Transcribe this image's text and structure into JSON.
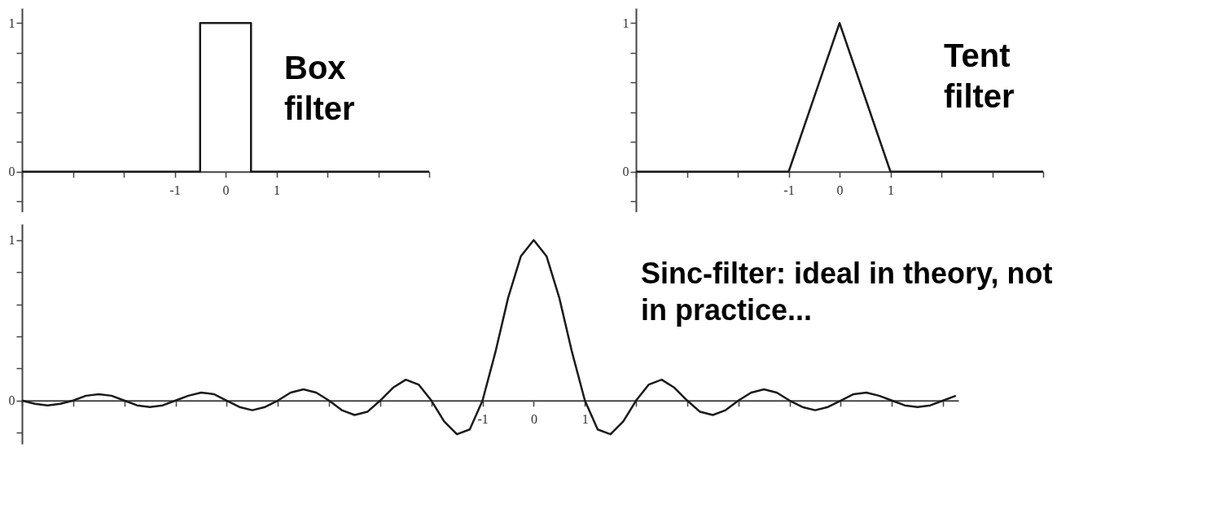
{
  "chart_data": [
    {
      "type": "step",
      "annotations": [
        "Box filter"
      ],
      "series": [
        {
          "color": "#1a1a1a",
          "x": [
            -4,
            -0.5,
            0.5,
            4
          ],
          "values": [
            0,
            1,
            0,
            0
          ]
        }
      ],
      "xlim": [
        -4,
        4
      ],
      "xticks": [
        {
          "value": -4,
          "label": null
        },
        {
          "value": -3,
          "label": null
        },
        {
          "value": -2,
          "label": null
        },
        -1,
        0,
        1,
        {
          "value": 2,
          "label": null
        },
        {
          "value": 3,
          "label": null
        },
        {
          "value": 4,
          "label": null
        }
      ],
      "ylim": [
        -0.27,
        1.1
      ],
      "yticks": [
        {
          "value": -0.2,
          "label": null
        },
        0,
        {
          "value": 0.2,
          "label": null
        },
        {
          "value": 0.4,
          "label": null
        },
        {
          "value": 0.6,
          "label": null
        },
        {
          "value": 0.8,
          "label": null
        },
        1
      ]
    },
    {
      "type": "line",
      "annotations": [
        "Tent filter"
      ],
      "series": [
        {
          "color": "#1a1a1a",
          "x": [
            -4,
            -1,
            0,
            1,
            4
          ],
          "values": [
            0,
            0,
            1,
            0,
            0
          ]
        }
      ],
      "xlim": [
        -4,
        4
      ],
      "xticks": [
        {
          "value": -4,
          "label": null
        },
        {
          "value": -3,
          "label": null
        },
        {
          "value": -2,
          "label": null
        },
        -1,
        0,
        1,
        {
          "value": 2,
          "label": null
        },
        {
          "value": 3,
          "label": null
        },
        {
          "value": 4,
          "label": null
        }
      ],
      "ylim": [
        -0.27,
        1.1
      ],
      "yticks": [
        {
          "value": -0.2,
          "label": null
        },
        0,
        {
          "value": 0.2,
          "label": null
        },
        {
          "value": 0.4,
          "label": null
        },
        {
          "value": 0.6,
          "label": null
        },
        {
          "value": 0.8,
          "label": null
        },
        1
      ]
    },
    {
      "type": "line",
      "annotations": [
        "Sinc-filter: ideal in theory, not in practice..."
      ],
      "series": [
        {
          "color": "#1a1a1a",
          "x": [
            -10,
            -9.75,
            -9.5,
            -9.25,
            -9,
            -8.75,
            -8.5,
            -8.25,
            -8,
            -7.75,
            -7.5,
            -7.25,
            -7,
            -6.75,
            -6.5,
            -6.25,
            -6,
            -5.75,
            -5.5,
            -5.25,
            -5,
            -4.75,
            -4.5,
            -4.25,
            -4,
            -3.75,
            -3.5,
            -3.25,
            -3,
            -2.75,
            -2.5,
            -2.25,
            -2,
            -1.75,
            -1.5,
            -1.25,
            -1,
            -0.75,
            -0.5,
            -0.25,
            0,
            0.25,
            0.5,
            0.75,
            1,
            1.25,
            1.5,
            1.75,
            2,
            2.25,
            2.5,
            2.75,
            3,
            3.25,
            3.5,
            3.75,
            4,
            4.25,
            4.5,
            4.75,
            5,
            5.25,
            5.5,
            5.75,
            6,
            6.25,
            6.5,
            6.75,
            7,
            7.25,
            7.5,
            7.75,
            8,
            8.25
          ],
          "values": [
            0,
            -0.02,
            -0.03,
            -0.02,
            0,
            0.03,
            0.04,
            0.03,
            0,
            -0.03,
            -0.04,
            -0.03,
            0,
            0.03,
            0.05,
            0.04,
            0,
            -0.04,
            -0.06,
            -0.04,
            0,
            0.05,
            0.07,
            0.05,
            0,
            -0.06,
            -0.09,
            -0.07,
            0,
            0.08,
            0.13,
            0.1,
            0,
            -0.13,
            -0.21,
            -0.18,
            0,
            0.3,
            0.64,
            0.9,
            1,
            0.9,
            0.64,
            0.3,
            0,
            -0.18,
            -0.21,
            -0.13,
            0,
            0.1,
            0.13,
            0.08,
            0,
            -0.07,
            -0.09,
            -0.06,
            0,
            0.05,
            0.07,
            0.05,
            0,
            -0.04,
            -0.06,
            -0.04,
            0,
            0.04,
            0.05,
            0.03,
            0,
            -0.03,
            -0.04,
            -0.03,
            0,
            0.03
          ]
        }
      ],
      "xlim": [
        -10,
        8.3
      ],
      "xticks": [
        {
          "value": -10,
          "label": null
        },
        {
          "value": -9,
          "label": null
        },
        {
          "value": -8,
          "label": null
        },
        {
          "value": -7,
          "label": null
        },
        {
          "value": -6,
          "label": null
        },
        {
          "value": -5,
          "label": null
        },
        {
          "value": -4,
          "label": null
        },
        {
          "value": -3,
          "label": null
        },
        {
          "value": -2,
          "label": null
        },
        -1,
        0,
        1,
        {
          "value": 2,
          "label": null
        },
        {
          "value": 3,
          "label": null
        },
        {
          "value": 4,
          "label": null
        },
        {
          "value": 5,
          "label": null
        },
        {
          "value": 6,
          "label": null
        },
        {
          "value": 7,
          "label": null
        },
        {
          "value": 8,
          "label": null
        }
      ],
      "ylim": [
        -0.27,
        1.1
      ],
      "yticks": [
        {
          "value": -0.2,
          "label": null
        },
        0,
        {
          "value": 0.2,
          "label": null
        },
        {
          "value": 0.4,
          "label": null
        },
        {
          "value": 0.6,
          "label": null
        },
        {
          "value": 0.8,
          "label": null
        },
        1
      ]
    }
  ]
}
